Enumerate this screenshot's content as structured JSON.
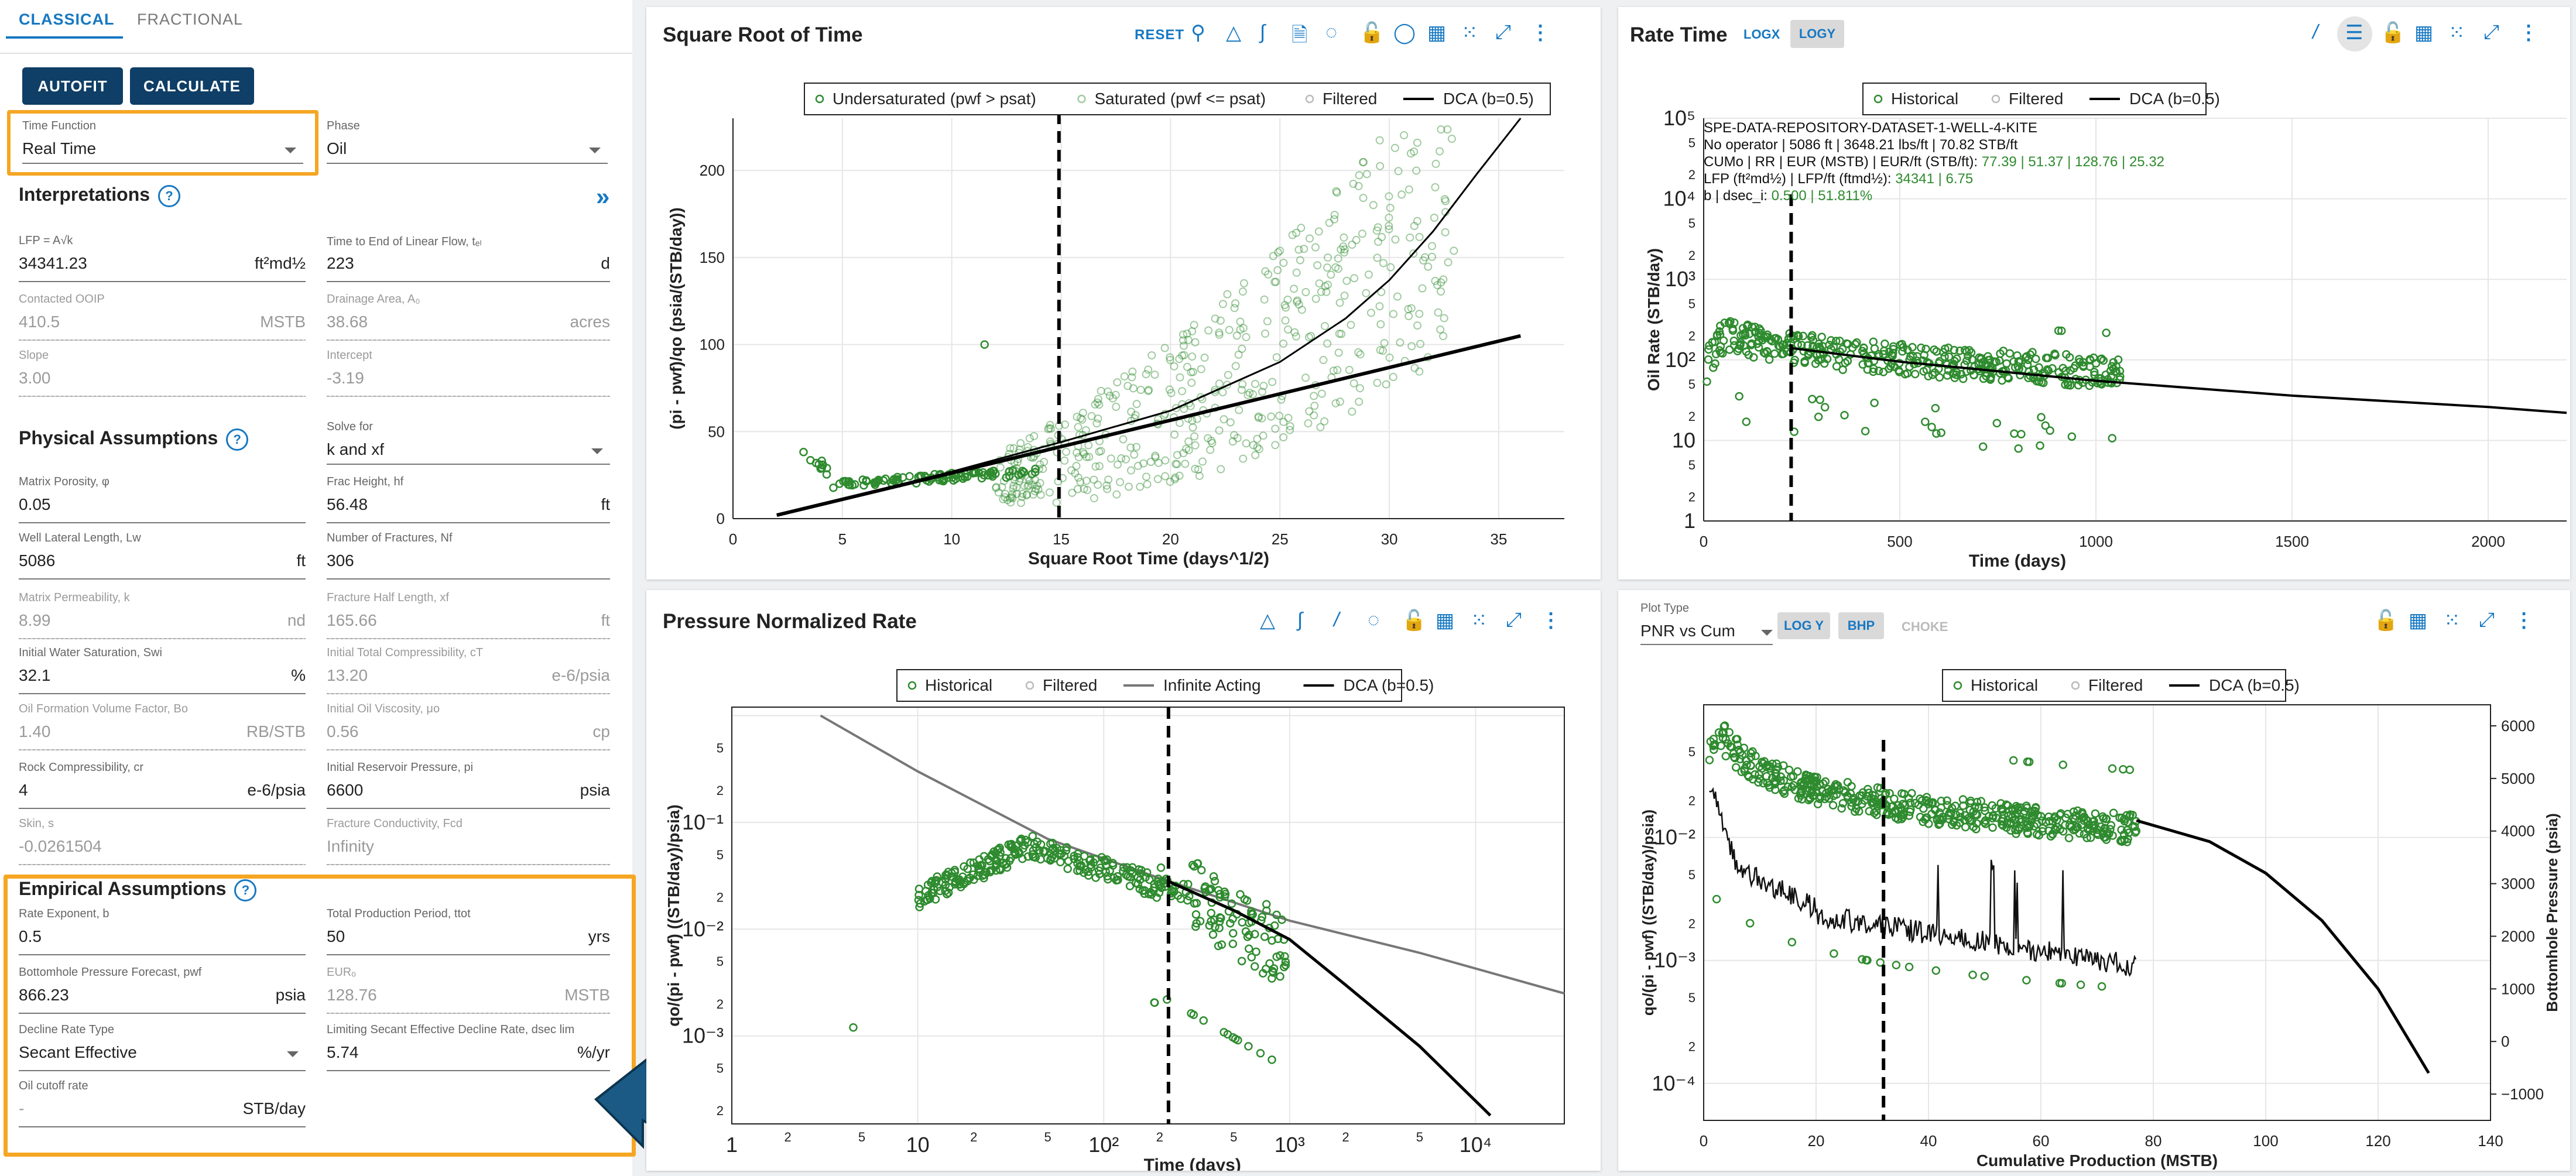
{
  "tabs": [
    "CLASSICAL",
    "FRACTIONAL"
  ],
  "buttons": {
    "autofit": "AUTOFIT",
    "calculate": "CALCULATE"
  },
  "time_function": {
    "label": "Time Function",
    "value": "Real Time"
  },
  "phase": {
    "label": "Phase",
    "value": "Oil"
  },
  "interpretations": {
    "title": "Interpretations",
    "lfp": {
      "label": "LFP = A√k",
      "value": "34341.23",
      "unit": "ft²md½"
    },
    "tel": {
      "label": "Time to End of Linear Flow, tₑₗ",
      "value": "223",
      "unit": "d"
    },
    "ooip": {
      "label": "Contacted OOIP",
      "value": "410.5",
      "unit": "MSTB"
    },
    "drainage": {
      "label": "Drainage Area, A₀",
      "value": "38.68",
      "unit": "acres"
    },
    "slope": {
      "label": "Slope",
      "value": "3.00"
    },
    "intercept": {
      "label": "Intercept",
      "value": "-3.19"
    }
  },
  "physical": {
    "title": "Physical Assumptions",
    "solve_for": {
      "label": "Solve for",
      "value": "k and xf"
    },
    "porosity": {
      "label": "Matrix Porosity, φ",
      "value": "0.05"
    },
    "frac_height": {
      "label": "Frac Height, hf",
      "value": "56.48",
      "unit": "ft"
    },
    "lateral": {
      "label": "Well Lateral Length, Lw",
      "value": "5086",
      "unit": "ft"
    },
    "nfrac": {
      "label": "Number of Fractures, Nf",
      "value": "306"
    },
    "perm": {
      "label": "Matrix Permeability, k",
      "value": "8.99",
      "unit": "nd"
    },
    "xf": {
      "label": "Fracture Half Length, xf",
      "value": "165.66",
      "unit": "ft"
    },
    "swi": {
      "label": "Initial Water Saturation, Swi",
      "value": "32.1",
      "unit": "%"
    },
    "ct": {
      "label": "Initial Total Compressibility, cT",
      "value": "13.20",
      "unit": "e-6/psia"
    },
    "bo": {
      "label": "Oil Formation Volume Factor, Bo",
      "value": "1.40",
      "unit": "RB/STB"
    },
    "muo": {
      "label": "Initial Oil Viscosity, μo",
      "value": "0.56",
      "unit": "cp"
    },
    "cr": {
      "label": "Rock Compressibility, cr",
      "value": "4",
      "unit": "e-6/psia"
    },
    "pi": {
      "label": "Initial Reservoir Pressure, pi",
      "value": "6600",
      "unit": "psia"
    },
    "skin": {
      "label": "Skin, s",
      "value": "-0.0261504"
    },
    "fcd": {
      "label": "Fracture Conductivity, Fcd",
      "value": "Infinity"
    }
  },
  "empirical": {
    "title": "Empirical Assumptions",
    "b": {
      "label": "Rate Exponent, b",
      "value": "0.5"
    },
    "ttot": {
      "label": "Total Production Period, ttot",
      "value": "50",
      "unit": "yrs"
    },
    "pwf": {
      "label": "Bottomhole Pressure Forecast, pwf",
      "value": "866.23",
      "unit": "psia"
    },
    "eur": {
      "label": "EURₒ",
      "value": "128.76",
      "unit": "MSTB"
    },
    "decline_type": {
      "label": "Decline Rate Type",
      "value": "Secant Effective"
    },
    "dlim": {
      "label": "Limiting Secant Effective Decline Rate, dsec lim",
      "value": "5.74",
      "unit": "%/yr"
    },
    "cutoff": {
      "label": "Oil cutoff rate",
      "value": "-",
      "unit": "STB/day"
    }
  },
  "colors": {
    "accent": "#1778c2",
    "button": "#0f3e66",
    "highlight": "#f5a623",
    "data": "#2e8b2e",
    "arrow": "#1b5a85"
  },
  "sqrt_chart": {
    "title": "Square Root of Time",
    "reset": "RESET",
    "legend": [
      "Undersaturated (pwf > psat)",
      "Saturated (pwf <= psat)",
      "Filtered",
      "DCA (b=0.5)"
    ],
    "xlabel": "Square Root Time (days^1/2)",
    "ylabel": "(pi - pwf)/qo (psia/(STB/day))"
  },
  "rate_chart": {
    "title": "Rate Time",
    "logx": "LOGX",
    "logy": "LOGY",
    "legend": [
      "Historical",
      "Filtered",
      "DCA (b=0.5)"
    ],
    "xlabel": "Time (days)",
    "ylabel": "Oil Rate (STB/day)",
    "info": [
      "SPE-DATA-REPOSITORY-DATASET-1-WELL-4-KITE",
      "No operator | 5086 ft | 3648.21 lbs/ft | 70.82 STB/ft",
      "CUMo | RR | EUR (MSTB) | EUR/ft (STB/ft):",
      "77.39 | 51.37 | 128.76 | 25.32",
      "LFP (ft²md½) | LFP/ft (ftmd½):",
      "34341 | 6.75",
      "b | dsec_i:",
      "0.500 | 51.811%"
    ]
  },
  "pnr_chart": {
    "title": "Pressure Normalized Rate",
    "legend": [
      "Historical",
      "Filtered",
      "Infinite Acting",
      "DCA (b=0.5)"
    ],
    "xlabel": "Time (days)",
    "ylabel": "qo/(pi - pwf) ((STB/day)/psia)"
  },
  "cum_chart": {
    "plot_type_label": "Plot Type",
    "plot_type_value": "PNR vs Cum",
    "logy": "LOG Y",
    "bhp": "BHP",
    "choke": "CHOKE",
    "legend": [
      "Historical",
      "Filtered",
      "DCA (b=0.5)"
    ],
    "xlabel": "Cumulative Production (MSTB)",
    "ylabel": "qo/(pi - pwf) ((STB/day)/psia)",
    "y2label": "Bottomhole Pressure (psia)"
  },
  "chart_data": [
    {
      "type": "scatter",
      "title": "Square Root of Time",
      "xlabel": "Square Root Time (days^1/2)",
      "ylabel": "(pi - pwf)/qo (psia/(STB/day))",
      "xlim": [
        0,
        38
      ],
      "ylim": [
        0,
        230
      ],
      "xticks": [
        "0",
        "5",
        "10",
        "15",
        "20",
        "25",
        "30",
        "35"
      ],
      "yticks": [
        "0",
        "50",
        "100",
        "150",
        "200"
      ],
      "vline_x": 14.9,
      "series": [
        {
          "name": "DCA linear",
          "x": [
            2,
            36
          ],
          "y": [
            2,
            105
          ]
        },
        {
          "name": "DCA (b=0.5)",
          "x": [
            2,
            10,
            15,
            20,
            25,
            28,
            30,
            32,
            34,
            36
          ],
          "y": [
            2,
            27,
            44,
            62,
            90,
            115,
            137,
            165,
            198,
            230
          ]
        },
        {
          "name": "Undersaturated",
          "x": [
            3,
            3.5,
            4,
            5,
            6,
            7,
            8,
            9,
            10,
            11,
            12,
            13,
            14
          ],
          "y": [
            38,
            28,
            22,
            19,
            18,
            18,
            19,
            21,
            23,
            27,
            30,
            35,
            40
          ]
        },
        {
          "name": "Saturated",
          "x": [
            15,
            16,
            17,
            18,
            19,
            20,
            21,
            22,
            23,
            24,
            25,
            26,
            27,
            28,
            29,
            30,
            31,
            32
          ],
          "y": [
            45,
            52,
            58,
            62,
            68,
            72,
            78,
            85,
            92,
            100,
            110,
            118,
            128,
            138,
            145,
            150,
            160,
            170
          ]
        }
      ]
    },
    {
      "type": "scatter",
      "title": "Rate Time",
      "xlabel": "Time (days)",
      "ylabel": "Oil Rate (STB/day)",
      "xlim": [
        0,
        2200
      ],
      "ylim_log": [
        1,
        100000
      ],
      "xticks": [
        "0",
        "500",
        "1000",
        "1500",
        "2000"
      ],
      "vline_x": 223,
      "series": [
        {
          "name": "Historical",
          "x": [
            20,
            60,
            100,
            150,
            200,
            250,
            300,
            400,
            500,
            600,
            700,
            800,
            900,
            1000,
            1050
          ],
          "y": [
            120,
            220,
            180,
            150,
            130,
            110,
            100,
            85,
            70,
            60,
            55,
            50,
            45,
            40,
            38
          ]
        },
        {
          "name": "DCA (b=0.5)",
          "x": [
            223,
            500,
            1000,
            1500,
            2000,
            2200
          ],
          "y": [
            140,
            95,
            55,
            36,
            26,
            22
          ]
        }
      ]
    },
    {
      "type": "scatter",
      "title": "Pressure Normalized Rate",
      "xlabel": "Time (days)",
      "ylabel": "qo/(pi - pwf) ((STB/day)/psia)",
      "xlim_log": [
        1,
        30000
      ],
      "ylim_log": [
        0.00015,
        1.2
      ],
      "vline_x": 223,
      "series": [
        {
          "name": "Historical",
          "x": [
            10,
            20,
            40,
            80,
            120,
            200,
            300,
            500,
            800,
            1000
          ],
          "y": [
            0.02,
            0.04,
            0.06,
            0.055,
            0.05,
            0.03,
            0.02,
            0.012,
            0.008,
            0.006
          ]
        },
        {
          "name": "Infinite Acting",
          "x": [
            3,
            10,
            50,
            200,
            1000,
            5000,
            30000
          ],
          "y": [
            1.0,
            0.3,
            0.07,
            0.03,
            0.012,
            0.006,
            0.0025
          ]
        },
        {
          "name": "DCA (b=0.5)",
          "x": [
            223,
            500,
            1000,
            2000,
            5000,
            12000
          ],
          "y": [
            0.028,
            0.015,
            0.008,
            0.003,
            0.0008,
            0.00018
          ]
        }
      ]
    },
    {
      "type": "scatter",
      "title": "PNR vs Cum",
      "xlabel": "Cumulative Production (MSTB)",
      "ylabel": "qo/(pi - pwf) ((STB/day)/psia)",
      "y2label": "Bottomhole Pressure (psia)",
      "xlim": [
        0,
        140
      ],
      "xticks": [
        "0",
        "20",
        "40",
        "60",
        "80",
        "100",
        "120",
        "140"
      ],
      "y2ticks": [
        "6000",
        "5000",
        "4000",
        "3000",
        "2000",
        "1000",
        "0",
        "-1000"
      ],
      "vline_x": 32,
      "series": [
        {
          "name": "Historical",
          "x": [
            1,
            5,
            10,
            20,
            30,
            40,
            50,
            60,
            70,
            77
          ],
          "y": [
            0.05,
            0.08,
            0.06,
            0.04,
            0.03,
            0.022,
            0.018,
            0.015,
            0.012,
            0.01
          ]
        },
        {
          "name": "DCA (b=0.5)",
          "x": [
            77,
            90,
            100,
            110,
            120,
            129
          ],
          "y": [
            4200,
            3800,
            3200,
            2300,
            1000,
            -600
          ]
        },
        {
          "name": "BHP",
          "x": [
            1,
            3,
            6,
            10,
            15,
            20,
            30,
            40,
            50,
            60,
            70,
            77
          ],
          "y": [
            4900,
            4000,
            3300,
            3000,
            2700,
            2400,
            1900,
            1800,
            1700,
            1600,
            1500,
            1400
          ]
        }
      ]
    }
  ]
}
